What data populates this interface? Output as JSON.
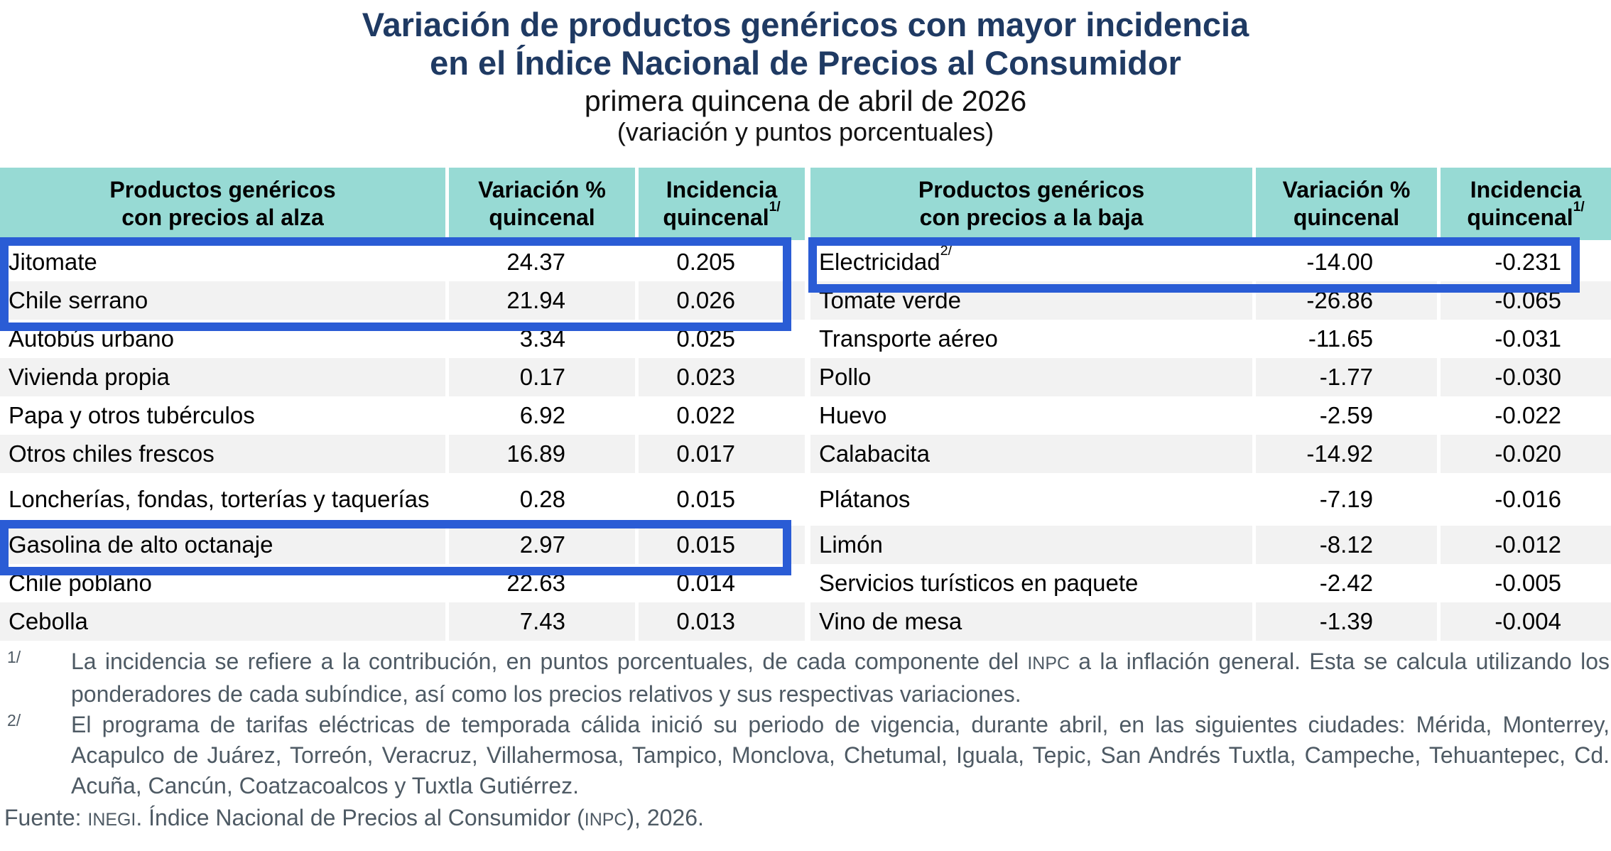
{
  "title": {
    "line1": "Variación de productos genéricos con mayor incidencia",
    "line2": "en el Índice Nacional de Precios al Consumidor",
    "subtitle": "primera quincena de abril de 2026",
    "units_note": "(variación y puntos porcentuales)"
  },
  "colors": {
    "title_navy": "#1F3A63",
    "header_teal": "#97DAD4",
    "highlight_blue": "#2A5CD5",
    "row_alt_gray": "#F2F2F2",
    "footnote_slate": "#4E5A64"
  },
  "left_table": {
    "headers": {
      "products_line1": "Productos genéricos",
      "products_line2": "con precios al alza",
      "variation_line1": "Variación %",
      "variation_line2": "quincenal",
      "incidence_line1": "Incidencia",
      "incidence_line2": "quincenal",
      "incidence_sup": "1/"
    },
    "rows": [
      {
        "name": "Jitomate",
        "variacion": "24.37",
        "incidencia": "0.205"
      },
      {
        "name": "Chile serrano",
        "variacion": "21.94",
        "incidencia": "0.026"
      },
      {
        "name": "Autobús urbano",
        "variacion": "3.34",
        "incidencia": "0.025"
      },
      {
        "name": "Vivienda propia",
        "variacion": "0.17",
        "incidencia": "0.023"
      },
      {
        "name": "Papa y otros tubérculos",
        "variacion": "6.92",
        "incidencia": "0.022"
      },
      {
        "name": "Otros chiles frescos",
        "variacion": "16.89",
        "incidencia": "0.017"
      },
      {
        "name": "Loncherías, fondas, torterías y taquerías",
        "variacion": "0.28",
        "incidencia": "0.015"
      },
      {
        "name": "Gasolina de alto octanaje",
        "variacion": "2.97",
        "incidencia": "0.015"
      },
      {
        "name": "Chile poblano",
        "variacion": "22.63",
        "incidencia": "0.014"
      },
      {
        "name": "Cebolla",
        "variacion": "7.43",
        "incidencia": "0.013"
      }
    ]
  },
  "right_table": {
    "headers": {
      "products_line1": "Productos genéricos",
      "products_line2": "con precios a la baja",
      "variation_line1": "Variación %",
      "variation_line2": "quincenal",
      "incidence_line1": "Incidencia",
      "incidence_line2": "quincenal",
      "incidence_sup": "1/"
    },
    "rows": [
      {
        "name": "Electricidad",
        "sup": "2/",
        "variacion": "-14.00",
        "incidencia": "-0.231"
      },
      {
        "name": "Tomate verde",
        "variacion": "-26.86",
        "incidencia": "-0.065"
      },
      {
        "name": "Transporte aéreo",
        "variacion": "-11.65",
        "incidencia": "-0.031"
      },
      {
        "name": "Pollo",
        "variacion": "-1.77",
        "incidencia": "-0.030"
      },
      {
        "name": "Huevo",
        "variacion": "-2.59",
        "incidencia": "-0.022"
      },
      {
        "name": "Calabacita",
        "variacion": "-14.92",
        "incidencia": "-0.020"
      },
      {
        "name": "Plátanos",
        "variacion": "-7.19",
        "incidencia": "-0.016"
      },
      {
        "name": "Limón",
        "variacion": "-8.12",
        "incidencia": "-0.012"
      },
      {
        "name": "Servicios turísticos en paquete",
        "variacion": "-2.42",
        "incidencia": "-0.005"
      },
      {
        "name": "Vino de mesa",
        "variacion": "-1.39",
        "incidencia": "-0.004"
      }
    ]
  },
  "highlights": {
    "left_rows": [
      "Jitomate",
      "Chile serrano",
      "Gasolina de alto octanaje"
    ],
    "right_rows": [
      "Electricidad"
    ]
  },
  "footnotes": {
    "fn1": {
      "marker": "1/",
      "t1": "La incidencia se refiere a la contribución, en puntos porcentuales, de cada componente del ",
      "sc1": "INPC",
      "t2": " a la inflación general. Esta se calcula utilizando los ponderadores de cada subíndice, así como los precios relativos y sus respectivas variaciones."
    },
    "fn2": {
      "marker": "2/",
      "text": "El programa de tarifas eléctricas de temporada cálida inició su periodo de vigencia, durante abril, en las siguientes ciudades: Mérida, Monterrey, Acapulco de Juárez, Torreón, Veracruz, Villahermosa, Tampico, Monclova, Chetumal, Iguala, Tepic, San Andrés Tuxtla, Campeche, Tehuantepec, Cd. Acuña, Cancún, Coatzacoalcos y Tuxtla Gutiérrez."
    }
  },
  "source": {
    "t1": "Fuente: ",
    "sc1": "INEGI",
    "t2": ". Índice Nacional de Precios al Consumidor (",
    "sc2": "INPC",
    "t3": "), 2026."
  },
  "chart_data": {
    "type": "table",
    "title": "Variación de productos genéricos con mayor incidencia en el Índice Nacional de Precios al Consumidor",
    "subtitle": "primera quincena de abril de 2026 (variación y puntos porcentuales)",
    "tables": [
      {
        "name": "Productos genéricos con precios al alza",
        "columns": [
          "Producto",
          "Variación % quincenal",
          "Incidencia quincenal"
        ],
        "rows": [
          [
            "Jitomate",
            24.37,
            0.205
          ],
          [
            "Chile serrano",
            21.94,
            0.026
          ],
          [
            "Autobús urbano",
            3.34,
            0.025
          ],
          [
            "Vivienda propia",
            0.17,
            0.023
          ],
          [
            "Papa y otros tubérculos",
            6.92,
            0.022
          ],
          [
            "Otros chiles frescos",
            16.89,
            0.017
          ],
          [
            "Loncherías, fondas, torterías y taquerías",
            0.28,
            0.015
          ],
          [
            "Gasolina de alto octanaje",
            2.97,
            0.015
          ],
          [
            "Chile poblano",
            22.63,
            0.014
          ],
          [
            "Cebolla",
            7.43,
            0.013
          ]
        ]
      },
      {
        "name": "Productos genéricos con precios a la baja",
        "columns": [
          "Producto",
          "Variación % quincenal",
          "Incidencia quincenal"
        ],
        "rows": [
          [
            "Electricidad",
            -14.0,
            -0.231
          ],
          [
            "Tomate verde",
            -26.86,
            -0.065
          ],
          [
            "Transporte aéreo",
            -11.65,
            -0.031
          ],
          [
            "Pollo",
            -1.77,
            -0.03
          ],
          [
            "Huevo",
            -2.59,
            -0.022
          ],
          [
            "Calabacita",
            -14.92,
            -0.02
          ],
          [
            "Plátanos",
            -7.19,
            -0.016
          ],
          [
            "Limón",
            -8.12,
            -0.012
          ],
          [
            "Servicios turísticos en paquete",
            -2.42,
            -0.005
          ],
          [
            "Vino de mesa",
            -1.39,
            -0.004
          ]
        ]
      }
    ]
  }
}
